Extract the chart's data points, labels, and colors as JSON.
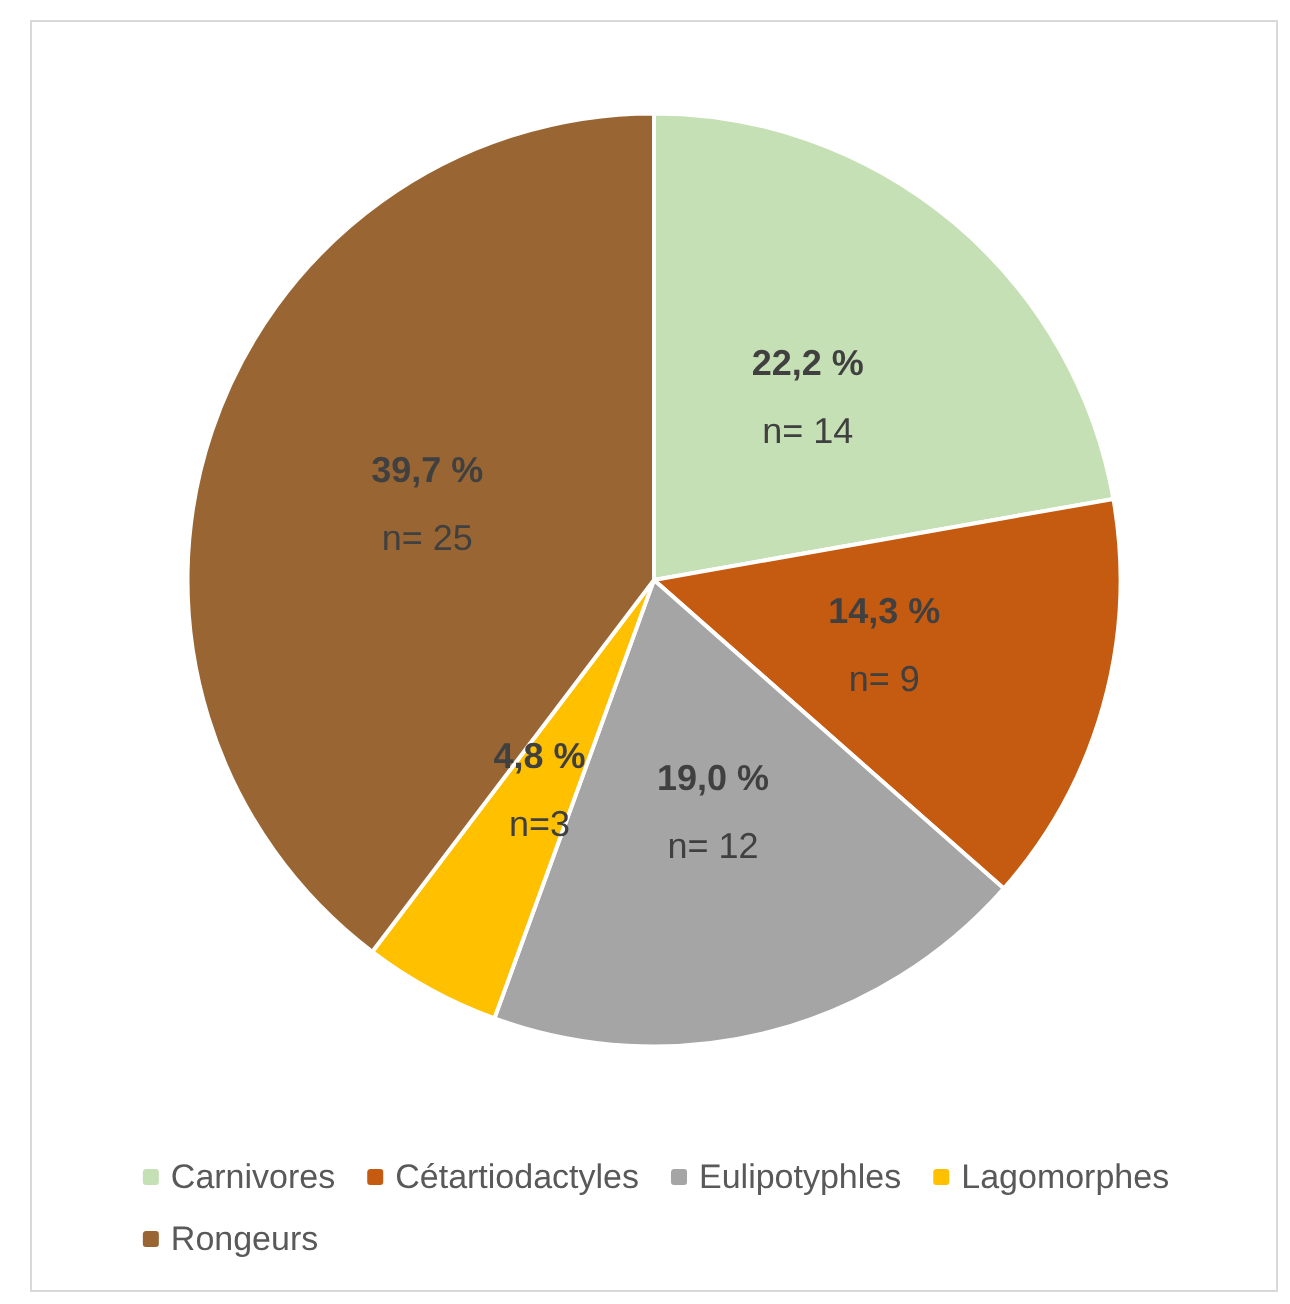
{
  "chart_data": {
    "type": "pie",
    "categories": [
      "Carnivores",
      "Cétartiodactyles",
      "Eulipotyphles",
      "Lagomorphes",
      "Rongeurs"
    ],
    "values": [
      14,
      9,
      12,
      3,
      25
    ],
    "colors": [
      "#c5e0b4",
      "#c55a11",
      "#a5a5a5",
      "#ffc000",
      "#996633"
    ],
    "value_labels": [
      "22,2 %\nn= 14",
      "14,3 %\nn= 9",
      "19,0 %\nn= 12",
      "4,8 %\nn=3",
      "39,7 %\nn= 25"
    ],
    "legend": "bottom"
  }
}
